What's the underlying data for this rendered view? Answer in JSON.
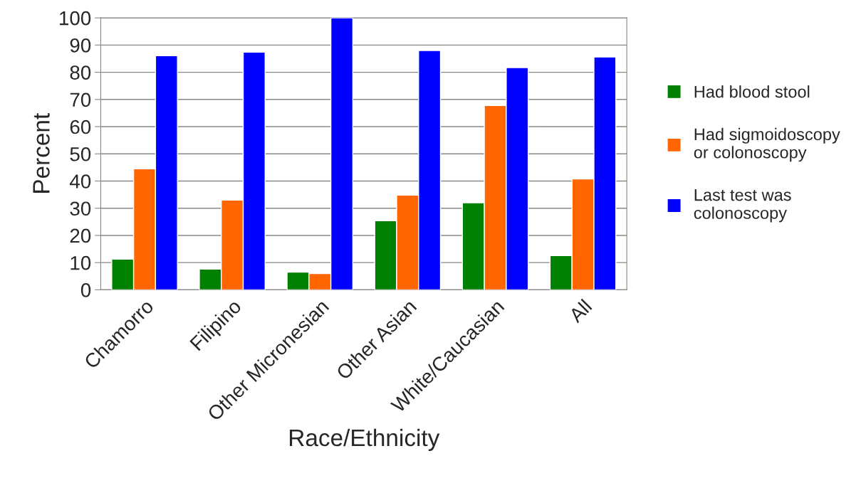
{
  "chart_data": {
    "type": "bar",
    "xlabel": "Race/Ethnicity",
    "ylabel": "Percent",
    "categories": [
      "Chamorro",
      "Filipino",
      "Other Micronesian",
      "Other Asian",
      "White/Caucasian",
      "All"
    ],
    "series": [
      {
        "name": "Had blood stool",
        "color": "#008000",
        "values": [
          11.3,
          7.6,
          6.5,
          25.4,
          32,
          12.6
        ]
      },
      {
        "name": "Had sigmoidoscopy\nor colonoscopy",
        "color": "#ff6600",
        "values": [
          44.5,
          33,
          6,
          34.8,
          67.8,
          40.8
        ]
      },
      {
        "name": "Last test was\ncolonoscopy",
        "color": "#0000ff",
        "values": [
          86.1,
          87.4,
          100,
          88,
          81.7,
          85.6
        ]
      }
    ],
    "ylim": [
      0,
      100
    ],
    "yticks": [
      0,
      10,
      20,
      30,
      40,
      50,
      60,
      70,
      80,
      90,
      100
    ],
    "grid": "y",
    "legend": "right"
  }
}
